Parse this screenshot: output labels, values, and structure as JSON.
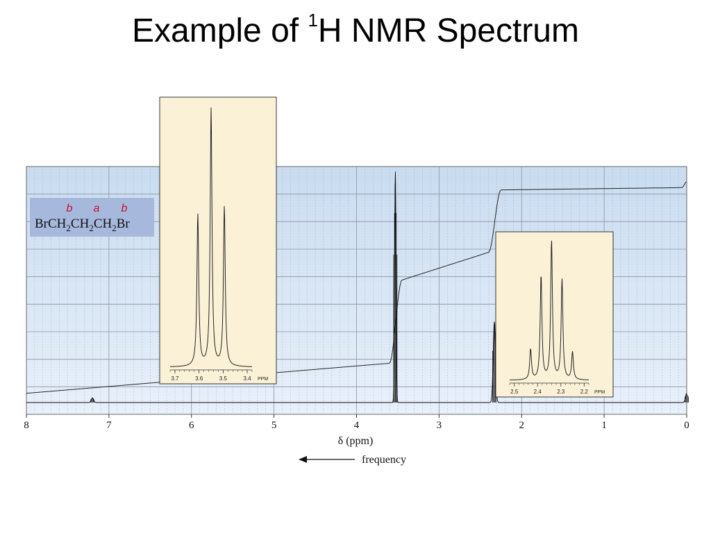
{
  "slide": {
    "title_pre": "Example of ",
    "title_sup": "1",
    "title_post": "H NMR Spectrum"
  },
  "molecule": {
    "labels": [
      "b",
      "a",
      "b"
    ],
    "formula_parts": [
      "BrCH",
      "2",
      "CH",
      "2",
      "CH",
      "2",
      "Br"
    ],
    "box_color": "#a7b8dd",
    "label_color": "#c8102e"
  },
  "chart_data": [
    {
      "type": "line",
      "name": "main-spectrum",
      "x_reversed": true,
      "xlim": [
        8,
        0
      ],
      "xticks": [
        "8",
        "7",
        "6",
        "5",
        "4",
        "3",
        "2",
        "1",
        "0"
      ],
      "xlabel": "δ (ppm)",
      "direction_label": "frequency",
      "grid": true,
      "background": "#dce8f5",
      "peaks": [
        {
          "ppm": 7.2,
          "height": 0.02
        },
        {
          "ppm": 3.53,
          "height": 1.0
        },
        {
          "ppm": 2.33,
          "height": 0.35
        },
        {
          "ppm": 0.0,
          "height": 0.04
        }
      ],
      "integral": [
        {
          "ppm": 8.0,
          "level": 0.04
        },
        {
          "ppm": 3.6,
          "level": 0.17
        },
        {
          "ppm": 3.45,
          "level": 0.53
        },
        {
          "ppm": 2.4,
          "level": 0.65
        },
        {
          "ppm": 2.25,
          "level": 0.92
        },
        {
          "ppm": 0.05,
          "level": 0.93
        },
        {
          "ppm": 0.0,
          "level": 0.96
        }
      ]
    },
    {
      "type": "line",
      "name": "inset-triplet",
      "xlim": [
        3.72,
        3.38
      ],
      "xticks": [
        "3.7",
        "3.6",
        "3.5",
        "3.4"
      ],
      "tick_values": [
        3.7,
        3.6,
        3.5,
        3.4
      ],
      "unit_label": "PPM",
      "background": "#fbf1d7",
      "peaks": [
        {
          "ppm": 3.605,
          "height": 0.59
        },
        {
          "ppm": 3.55,
          "height": 1.0
        },
        {
          "ppm": 3.495,
          "height": 0.62
        }
      ]
    },
    {
      "type": "line",
      "name": "inset-quintet",
      "xlim": [
        2.52,
        2.18
      ],
      "xticks": [
        "2.5",
        "2.4",
        "2.3",
        "2.2"
      ],
      "tick_values": [
        2.5,
        2.4,
        2.3,
        2.2
      ],
      "unit_label": "PPM",
      "background": "#fbf1d7",
      "peaks": [
        {
          "ppm": 2.43,
          "height": 0.22
        },
        {
          "ppm": 2.385,
          "height": 0.75
        },
        {
          "ppm": 2.34,
          "height": 1.0
        },
        {
          "ppm": 2.295,
          "height": 0.72
        },
        {
          "ppm": 2.25,
          "height": 0.2
        }
      ]
    }
  ]
}
